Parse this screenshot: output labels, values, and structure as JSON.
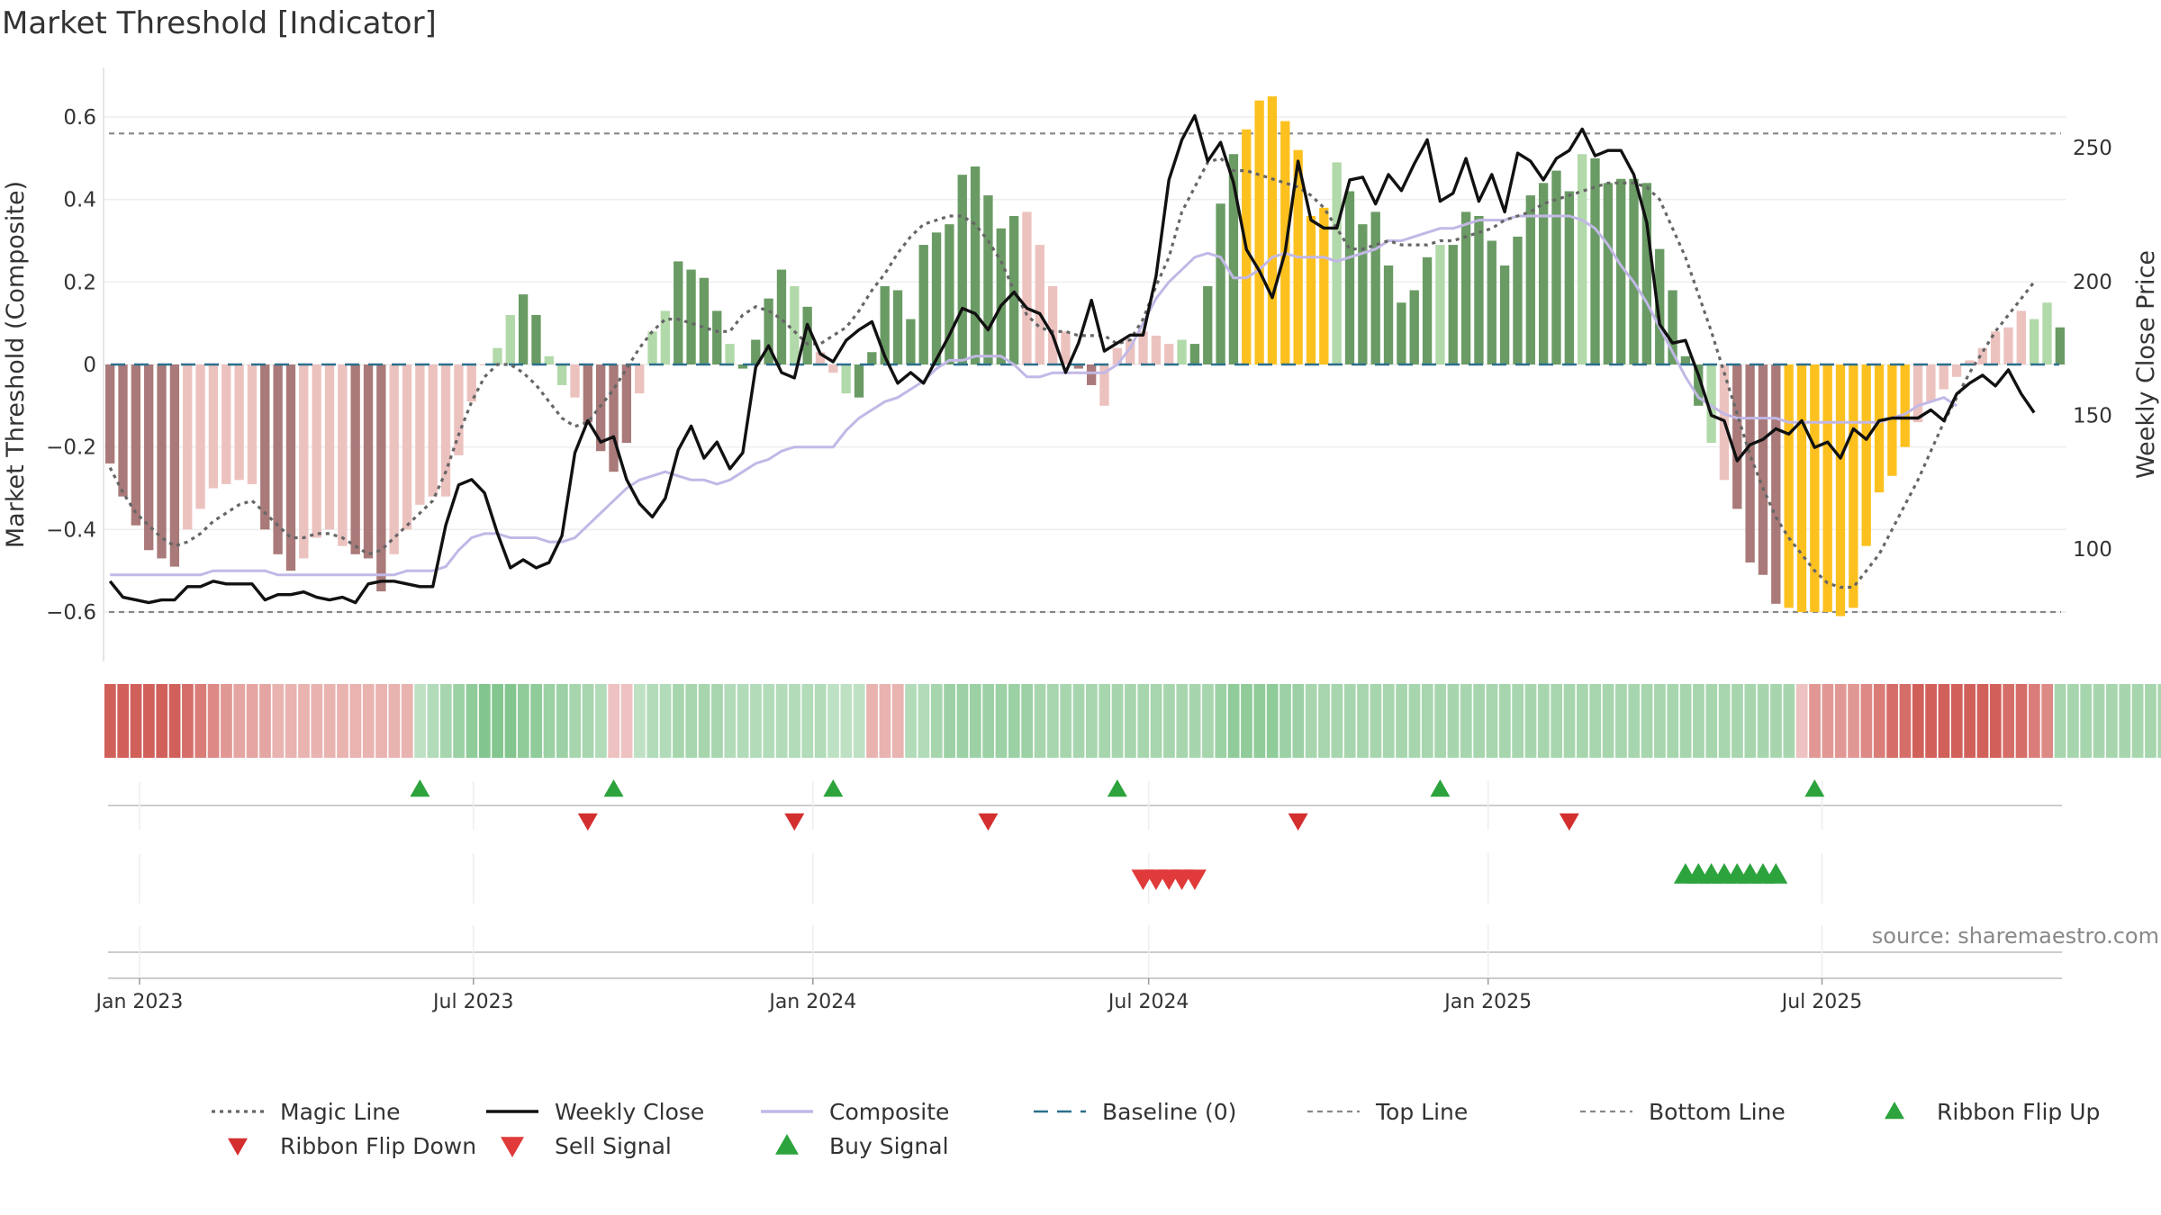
{
  "chart_data": {
    "type": "bar",
    "title": "Market Threshold [Indicator]",
    "ylabel_left": "Market Threshold (Composite)",
    "ylabel_right": "Weekly Close Price",
    "ylim_left": [
      -0.72,
      0.72
    ],
    "ylim_right": [
      58,
      280
    ],
    "yticks_left": [
      {
        "value": 0.6,
        "label": "0.6"
      },
      {
        "value": 0.4,
        "label": "0.4"
      },
      {
        "value": 0.2,
        "label": "0.2"
      },
      {
        "value": 0,
        "label": "0"
      },
      {
        "value": -0.2,
        "label": "−0.2"
      },
      {
        "value": -0.4,
        "label": "−0.4"
      },
      {
        "value": -0.6,
        "label": "−0.6"
      }
    ],
    "yticks_right": [
      {
        "value": 250,
        "label": "250"
      },
      {
        "value": 200,
        "label": "200"
      },
      {
        "value": 150,
        "label": "150"
      },
      {
        "value": 100,
        "label": "100"
      }
    ],
    "x_start": "2022-12-16",
    "x_step_days": 7,
    "xticks": [
      {
        "date": "2023-01-01",
        "label": "Jan 2023"
      },
      {
        "date": "2023-07-01",
        "label": "Jul 2023"
      },
      {
        "date": "2024-01-01",
        "label": "Jan 2024"
      },
      {
        "date": "2024-07-01",
        "label": "Jul 2024"
      },
      {
        "date": "2025-01-01",
        "label": "Jan 2025"
      },
      {
        "date": "2025-07-01",
        "label": "Jul 2025"
      }
    ],
    "top_line": 0.56,
    "bottom_line": -0.6,
    "baseline": 0,
    "composite_bars": [
      -0.24,
      -0.32,
      -0.39,
      -0.45,
      -0.47,
      -0.49,
      -0.4,
      -0.35,
      -0.3,
      -0.29,
      -0.28,
      -0.29,
      -0.4,
      -0.46,
      -0.5,
      -0.47,
      -0.42,
      -0.4,
      -0.44,
      -0.46,
      -0.47,
      -0.55,
      -0.46,
      -0.4,
      -0.34,
      -0.32,
      -0.32,
      -0.22,
      -0.09,
      0,
      0.04,
      0.12,
      0.17,
      0.12,
      0.02,
      -0.05,
      -0.08,
      -0.14,
      -0.21,
      -0.26,
      -0.19,
      -0.07,
      0.08,
      0.13,
      0.25,
      0.23,
      0.21,
      0.13,
      0.05,
      -0.01,
      0.06,
      0.16,
      0.23,
      0.19,
      0.14,
      0.03,
      -0.02,
      -0.07,
      -0.08,
      0.03,
      0.19,
      0.18,
      0.11,
      0.29,
      0.32,
      0.34,
      0.46,
      0.48,
      0.41,
      0.33,
      0.36,
      0.37,
      0.29,
      0.19,
      0.08,
      -0.01,
      -0.05,
      -0.1,
      0.04,
      0.06,
      0.08,
      0.07,
      0.05,
      0.06,
      0.05,
      0.19,
      0.39,
      0.51,
      0.57,
      0.64,
      0.65,
      0.59,
      0.52,
      0.36,
      0.38,
      0.49,
      0.42,
      0.34,
      0.37,
      0.24,
      0.15,
      0.18,
      0.26,
      0.29,
      0.29,
      0.37,
      0.36,
      0.3,
      0.24,
      0.31,
      0.41,
      0.44,
      0.47,
      0.42,
      0.51,
      0.5,
      0.44,
      0.45,
      0.45,
      0.44,
      0.28,
      0.18,
      0.02,
      -0.1,
      -0.19,
      -0.28,
      -0.35,
      -0.48,
      -0.51,
      -0.58,
      -0.59,
      -0.6,
      -0.6,
      -0.6,
      -0.61,
      -0.59,
      -0.44,
      -0.31,
      -0.27,
      -0.2,
      -0.14,
      -0.09,
      -0.06,
      -0.03,
      0.01,
      0.04,
      0.08,
      0.09,
      0.13,
      0.11,
      0.15,
      0.09
    ],
    "bar_color_codes": "NNNNNNnnnnnnNNNnnnnNNNnnnnnnnnppPPppnNNNNnppPPPPpPPPPpPnnpPPPPPPPPPPPPPnnnnNNnnnnnnpPPPPYYYYYYYpPPPPPPPpPPPPPPPPPPpPPPPPPPPPpnNNNNYYYYYYYYYYnnnnnnnnnppPPPPPP",
    "bar_colors": {
      "N": "#a97a79",
      "n": "#ecc2bf",
      "P": "#6a9b64",
      "p": "#b2d9a9",
      "Y": "#fdc11f"
    },
    "ribbon_levels": [
      -0.9,
      -0.9,
      -0.9,
      -0.9,
      -0.9,
      -0.9,
      -0.8,
      -0.7,
      -0.6,
      -0.5,
      -0.4,
      -0.4,
      -0.4,
      -0.3,
      -0.3,
      -0.3,
      -0.3,
      -0.3,
      -0.3,
      -0.3,
      -0.3,
      -0.3,
      -0.3,
      -0.3,
      0.3,
      0.4,
      0.5,
      0.6,
      0.7,
      0.8,
      0.8,
      0.8,
      0.7,
      0.7,
      0.6,
      0.6,
      0.5,
      0.5,
      0.4,
      -0.2,
      -0.2,
      0.3,
      0.4,
      0.4,
      0.5,
      0.5,
      0.5,
      0.5,
      0.4,
      0.4,
      0.4,
      0.4,
      0.4,
      0.4,
      0.4,
      0.4,
      0.3,
      0.3,
      0.3,
      -0.3,
      -0.3,
      -0.3,
      0.4,
      0.4,
      0.5,
      0.6,
      0.6,
      0.6,
      0.6,
      0.6,
      0.6,
      0.6,
      0.5,
      0.5,
      0.5,
      0.5,
      0.5,
      0.5,
      0.5,
      0.5,
      0.5,
      0.5,
      0.5,
      0.5,
      0.5,
      0.5,
      0.6,
      0.7,
      0.7,
      0.7,
      0.7,
      0.6,
      0.6,
      0.5,
      0.5,
      0.5,
      0.5,
      0.5,
      0.5,
      0.5,
      0.5,
      0.5,
      0.5,
      0.5,
      0.5,
      0.5,
      0.5,
      0.5,
      0.5,
      0.5,
      0.5,
      0.5,
      0.5,
      0.5,
      0.5,
      0.5,
      0.5,
      0.5,
      0.5,
      0.5,
      0.5,
      0.5,
      0.5,
      0.5,
      0.5,
      0.5,
      0.5,
      0.5,
      0.5,
      0.5,
      0.5,
      -0.2,
      -0.5,
      -0.5,
      -0.5,
      -0.5,
      -0.6,
      -0.7,
      -0.8,
      -0.8,
      -0.9,
      -0.9,
      -0.9,
      -0.9,
      -0.9,
      -0.9,
      -0.9,
      -0.8,
      -0.8,
      -0.7,
      -0.6,
      0.5,
      0.5,
      0.5,
      0.5,
      0.5,
      0.5,
      0.5,
      0.5,
      0.5,
      0.5,
      0.5,
      0.5,
      0.5
    ],
    "ribbon_level_note": "",
    "weekly_close": [
      88,
      82,
      81,
      80,
      81,
      81,
      86,
      86,
      88,
      87,
      87,
      87,
      81,
      83,
      83,
      84,
      82,
      81,
      82,
      80,
      87,
      88,
      88,
      87,
      86,
      86,
      109,
      124,
      126,
      121,
      106,
      93,
      96,
      93,
      95,
      105,
      136,
      148,
      140,
      142,
      126,
      117,
      112,
      119,
      137,
      146,
      134,
      140,
      130,
      136,
      168,
      176,
      166,
      164,
      184,
      173,
      170,
      178,
      182,
      185,
      172,
      162,
      166,
      162,
      171,
      180,
      190,
      188,
      182,
      191,
      196,
      190,
      188,
      180,
      166,
      177,
      193,
      174,
      177,
      180,
      180,
      202,
      238,
      253,
      262,
      245,
      252,
      237,
      212,
      204,
      194,
      211,
      245,
      223,
      220,
      220,
      238,
      239,
      229,
      240,
      234,
      244,
      253,
      230,
      233,
      246,
      230,
      240,
      226,
      248,
      245,
      238,
      246,
      249,
      257,
      247,
      249,
      249,
      240,
      222,
      184,
      177,
      178,
      165,
      150,
      148,
      133,
      139,
      141,
      145,
      143,
      148,
      138,
      140,
      134,
      145,
      141,
      148,
      149,
      149,
      149,
      152,
      148,
      158,
      162,
      165,
      161,
      167,
      158,
      151
    ],
    "magic_line": [
      -0.25,
      -0.31,
      -0.36,
      -0.39,
      -0.42,
      -0.44,
      -0.43,
      -0.41,
      -0.38,
      -0.36,
      -0.34,
      -0.33,
      -0.36,
      -0.39,
      -0.42,
      -0.42,
      -0.41,
      -0.41,
      -0.42,
      -0.44,
      -0.46,
      -0.45,
      -0.42,
      -0.39,
      -0.36,
      -0.33,
      -0.26,
      -0.17,
      -0.09,
      -0.03,
      0,
      0,
      -0.02,
      -0.05,
      -0.09,
      -0.13,
      -0.15,
      -0.14,
      -0.1,
      -0.06,
      -0.01,
      0.04,
      0.08,
      0.11,
      0.11,
      0.1,
      0.09,
      0.08,
      0.08,
      0.12,
      0.14,
      0.13,
      0.11,
      0.08,
      0.05,
      0.05,
      0.07,
      0.09,
      0.13,
      0.18,
      0.22,
      0.27,
      0.31,
      0.34,
      0.35,
      0.36,
      0.36,
      0.34,
      0.3,
      0.25,
      0.18,
      0.12,
      0.09,
      0.08,
      0.08,
      0.07,
      0.07,
      0.07,
      0.05,
      0.06,
      0.11,
      0.19,
      0.26,
      0.37,
      0.43,
      0.49,
      0.5,
      0.47,
      0.47,
      0.46,
      0.45,
      0.44,
      0.43,
      0.41,
      0.38,
      0.33,
      0.28,
      0.28,
      0.29,
      0.3,
      0.29,
      0.29,
      0.29,
      0.3,
      0.3,
      0.31,
      0.32,
      0.33,
      0.35,
      0.36,
      0.37,
      0.39,
      0.4,
      0.41,
      0.42,
      0.43,
      0.44,
      0.44,
      0.44,
      0.43,
      0.4,
      0.33,
      0.26,
      0.17,
      0.08,
      -0.02,
      -0.12,
      -0.22,
      -0.3,
      -0.37,
      -0.42,
      -0.46,
      -0.5,
      -0.53,
      -0.54,
      -0.54,
      -0.5,
      -0.46,
      -0.4,
      -0.34,
      -0.28,
      -0.21,
      -0.14,
      -0.08,
      -0.02,
      0.03,
      0.08,
      0.12,
      0.16,
      0.2
    ],
    "composite_line": [
      -0.51,
      -0.51,
      -0.51,
      -0.51,
      -0.51,
      -0.51,
      -0.51,
      -0.51,
      -0.5,
      -0.5,
      -0.5,
      -0.5,
      -0.5,
      -0.51,
      -0.51,
      -0.51,
      -0.51,
      -0.51,
      -0.51,
      -0.51,
      -0.51,
      -0.51,
      -0.51,
      -0.5,
      -0.5,
      -0.5,
      -0.49,
      -0.45,
      -0.42,
      -0.41,
      -0.41,
      -0.42,
      -0.42,
      -0.42,
      -0.43,
      -0.43,
      -0.42,
      -0.39,
      -0.36,
      -0.33,
      -0.3,
      -0.28,
      -0.27,
      -0.26,
      -0.27,
      -0.28,
      -0.28,
      -0.29,
      -0.28,
      -0.26,
      -0.24,
      -0.23,
      -0.21,
      -0.2,
      -0.2,
      -0.2,
      -0.2,
      -0.16,
      -0.13,
      -0.11,
      -0.09,
      -0.08,
      -0.06,
      -0.04,
      -0.01,
      0.01,
      0.01,
      0.02,
      0.02,
      0.02,
      0,
      -0.03,
      -0.03,
      -0.02,
      -0.02,
      -0.02,
      -0.02,
      -0.02,
      0,
      0.04,
      0.1,
      0.16,
      0.2,
      0.23,
      0.26,
      0.27,
      0.26,
      0.21,
      0.21,
      0.23,
      0.26,
      0.27,
      0.26,
      0.26,
      0.26,
      0.25,
      0.26,
      0.27,
      0.28,
      0.3,
      0.3,
      0.31,
      0.32,
      0.33,
      0.33,
      0.34,
      0.35,
      0.35,
      0.35,
      0.36,
      0.36,
      0.36,
      0.36,
      0.36,
      0.35,
      0.33,
      0.29,
      0.24,
      0.2,
      0.15,
      0.09,
      0.03,
      -0.03,
      -0.08,
      -0.1,
      -0.12,
      -0.13,
      -0.13,
      -0.13,
      -0.13,
      -0.14,
      -0.14,
      -0.14,
      -0.14,
      -0.14,
      -0.14,
      -0.14,
      -0.14,
      -0.13,
      -0.12,
      -0.1,
      -0.09,
      -0.08,
      -0.1
    ],
    "ribbon_flip_up_weeks": [
      24,
      39,
      56,
      78,
      103,
      132
    ],
    "ribbon_flip_down_weeks": [
      37,
      53,
      68,
      92,
      113
    ],
    "sell_signal_weeks": [
      80,
      81,
      82,
      83,
      84
    ],
    "buy_signal_weeks": [
      122,
      123,
      124,
      125,
      126,
      127,
      128,
      129
    ],
    "source_text": "source: sharemaestro.com",
    "legend_position": "bottom-center",
    "legend": [
      {
        "label": "Magic Line"
      },
      {
        "label": "Weekly Close"
      },
      {
        "label": "Composite"
      },
      {
        "label": "Baseline (0)"
      },
      {
        "label": "Top Line"
      },
      {
        "label": "Bottom Line"
      },
      {
        "label": "Ribbon Flip Up"
      },
      {
        "label": "Ribbon Flip Down"
      },
      {
        "label": "Sell Signal"
      },
      {
        "label": "Buy Signal"
      }
    ],
    "colors": {
      "magic_line": "#666666",
      "weekly_close": "#111111",
      "composite_line": "#c2b8e6",
      "baseline": "#2b6f8c",
      "threshold_lines": "#888888",
      "ribbon_flip_up": "#2ca33c",
      "ribbon_flip_down": "#d32f2f",
      "sell_signal": "#e03a3a",
      "buy_signal": "#2ca33c",
      "ribbon_pos": "#5cb36a",
      "ribbon_neg": "#c8403a"
    }
  }
}
